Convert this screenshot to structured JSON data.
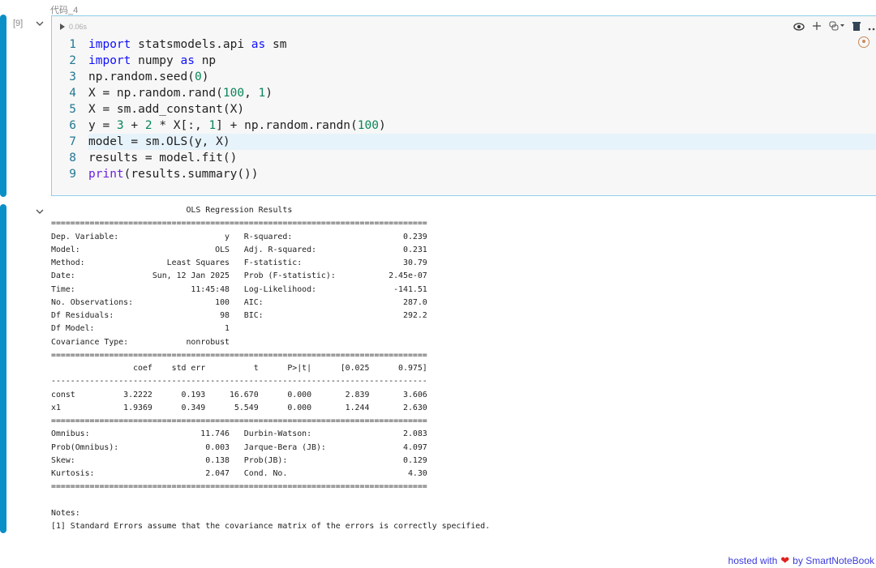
{
  "cell": {
    "label": "代码_4",
    "execution_count": "[9]",
    "run_time": "0.06s",
    "toolbar_icons": [
      "eye-icon",
      "plus-icon",
      "python-icon",
      "chevron-down-icon",
      "trash-icon",
      "more-icon"
    ],
    "active_line": 7,
    "code": [
      [
        [
          "kw",
          "import"
        ],
        [
          "txt",
          " statsmodels.api "
        ],
        [
          "kw",
          "as"
        ],
        [
          "txt",
          " sm"
        ]
      ],
      [
        [
          "kw",
          "import"
        ],
        [
          "txt",
          " numpy "
        ],
        [
          "kw",
          "as"
        ],
        [
          "txt",
          " np"
        ]
      ],
      [
        [
          "txt",
          "np.random.seed("
        ],
        [
          "num",
          "0"
        ],
        [
          "txt",
          ")"
        ]
      ],
      [
        [
          "txt",
          "X = np.random.rand("
        ],
        [
          "num",
          "100"
        ],
        [
          "txt",
          ", "
        ],
        [
          "num",
          "1"
        ],
        [
          "txt",
          ")"
        ]
      ],
      [
        [
          "txt",
          "X = sm.add_constant(X)"
        ]
      ],
      [
        [
          "txt",
          "y = "
        ],
        [
          "num",
          "3"
        ],
        [
          "txt",
          " + "
        ],
        [
          "num",
          "2"
        ],
        [
          "txt",
          " * X[:, "
        ],
        [
          "num",
          "1"
        ],
        [
          "txt",
          "] + np.random.randn("
        ],
        [
          "num",
          "100"
        ],
        [
          "txt",
          ")"
        ]
      ],
      [
        [
          "txt",
          "model = sm.OLS(y, X)"
        ]
      ],
      [
        [
          "txt",
          "results = model.fit()"
        ]
      ],
      [
        [
          "fn",
          "print"
        ],
        [
          "txt",
          "(results.summary())"
        ]
      ]
    ]
  },
  "output": {
    "lines": [
      "                            OLS Regression Results                            ",
      "==============================================================================",
      "Dep. Variable:                      y   R-squared:                       0.239",
      "Model:                            OLS   Adj. R-squared:                  0.231",
      "Method:                 Least Squares   F-statistic:                     30.79",
      "Date:                Sun, 12 Jan 2025   Prob (F-statistic):           2.45e-07",
      "Time:                        11:45:48   Log-Likelihood:                -141.51",
      "No. Observations:                 100   AIC:                             287.0",
      "Df Residuals:                      98   BIC:                             292.2",
      "Df Model:                           1                                         ",
      "Covariance Type:            nonrobust                                         ",
      "==============================================================================",
      "                 coef    std err          t      P>|t|      [0.025      0.975]",
      "------------------------------------------------------------------------------",
      "const          3.2222      0.193     16.670      0.000       2.839       3.606",
      "x1             1.9369      0.349      5.549      0.000       1.244       2.630",
      "==============================================================================",
      "Omnibus:                       11.746   Durbin-Watson:                   2.083",
      "Prob(Omnibus):                  0.003   Jarque-Bera (JB):                4.097",
      "Skew:                           0.138   Prob(JB):                        0.129",
      "Kurtosis:                       2.047   Cond. No.                         4.30",
      "==============================================================================",
      "",
      "Notes:",
      "[1] Standard Errors assume that the covariance matrix of the errors is correctly specified."
    ]
  },
  "footer": {
    "prefix": "hosted with",
    "heart": "❤",
    "suffix": "by SmartNoteBook"
  },
  "colors": {
    "accent": "#0a8fc7",
    "keyword": "#1010ff",
    "number": "#098658",
    "active_line_bg": "#e6f3fa"
  }
}
